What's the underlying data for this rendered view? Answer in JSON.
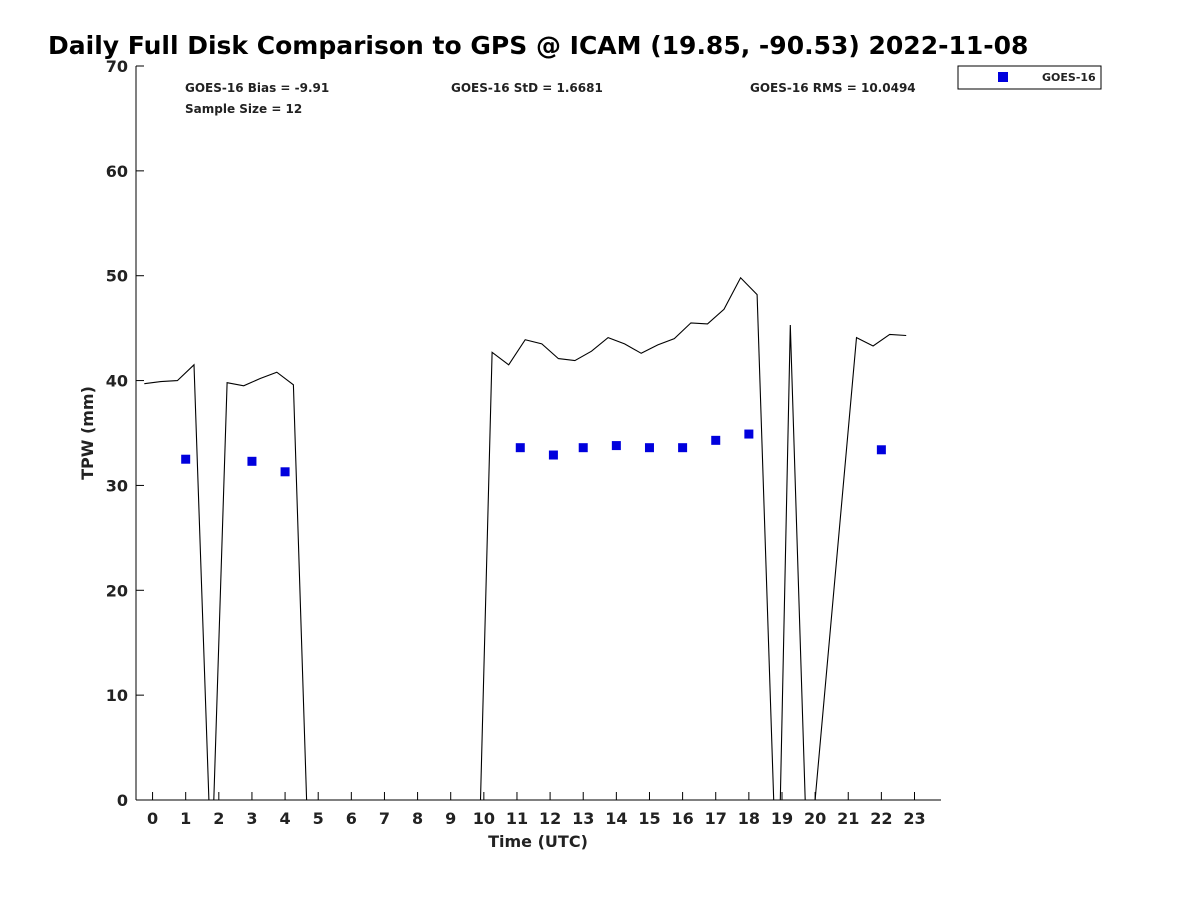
{
  "chart_data": {
    "type": "scatter",
    "title": "Daily Full Disk Comparison to GPS @ ICAM (19.85, -90.53) 2022-11-08",
    "xlabel": "Time (UTC)",
    "ylabel": "TPW (mm)",
    "xlim": [
      -0.5,
      23.8
    ],
    "ylim": [
      0,
      70
    ],
    "xticks": [
      "0",
      "1",
      "2",
      "3",
      "4",
      "5",
      "6",
      "7",
      "8",
      "9",
      "10",
      "11",
      "12",
      "13",
      "14",
      "15",
      "16",
      "17",
      "18",
      "19",
      "20",
      "21",
      "22",
      "23"
    ],
    "yticks": [
      "0",
      "10",
      "20",
      "30",
      "40",
      "50",
      "60",
      "70"
    ],
    "grid": false,
    "legend_position": "top-right",
    "stats": {
      "bias": "GOES-16 Bias = -9.91",
      "std": "GOES-16 StD = 1.6681",
      "rms": "GOES-16 RMS = 10.0494",
      "sample": "Sample Size = 12"
    },
    "series": [
      {
        "name": "GOES-16",
        "kind": "scatter",
        "color": "#0000dd",
        "marker": "square",
        "points": [
          [
            1.0,
            32.5
          ],
          [
            3.0,
            32.3
          ],
          [
            4.0,
            31.3
          ],
          [
            11.1,
            33.6
          ],
          [
            12.1,
            32.9
          ],
          [
            13.0,
            33.6
          ],
          [
            14.0,
            33.8
          ],
          [
            15.0,
            33.6
          ],
          [
            16.0,
            33.6
          ],
          [
            17.0,
            34.3
          ],
          [
            18.0,
            34.9
          ],
          [
            22.0,
            33.4
          ]
        ]
      },
      {
        "kind": "line",
        "color": "#000000",
        "points": [
          [
            -0.25,
            39.7
          ],
          [
            0.25,
            39.9
          ],
          [
            0.75,
            40.0
          ],
          [
            1.25,
            41.5
          ],
          [
            1.7,
            0
          ],
          [
            1.85,
            0
          ],
          [
            2.25,
            39.8
          ],
          [
            2.75,
            39.5
          ],
          [
            3.25,
            40.2
          ],
          [
            3.75,
            40.8
          ],
          [
            4.25,
            39.6
          ],
          [
            4.65,
            0
          ],
          [
            9.9,
            0
          ],
          [
            10.25,
            42.7
          ],
          [
            10.75,
            41.5
          ],
          [
            11.25,
            43.9
          ],
          [
            11.75,
            43.5
          ],
          [
            12.25,
            42.1
          ],
          [
            12.75,
            41.9
          ],
          [
            13.25,
            42.8
          ],
          [
            13.75,
            44.1
          ],
          [
            14.25,
            43.5
          ],
          [
            14.75,
            42.6
          ],
          [
            15.25,
            43.4
          ],
          [
            15.75,
            44.0
          ],
          [
            16.25,
            45.5
          ],
          [
            16.75,
            45.4
          ],
          [
            17.25,
            46.8
          ],
          [
            17.75,
            49.8
          ],
          [
            18.25,
            48.2
          ],
          [
            18.75,
            0
          ],
          [
            18.95,
            0
          ],
          [
            19.25,
            45.3
          ],
          [
            19.7,
            0
          ],
          [
            20.0,
            0
          ],
          [
            21.25,
            44.1
          ],
          [
            21.75,
            43.3
          ],
          [
            22.25,
            44.4
          ],
          [
            22.75,
            44.3
          ]
        ]
      }
    ]
  }
}
